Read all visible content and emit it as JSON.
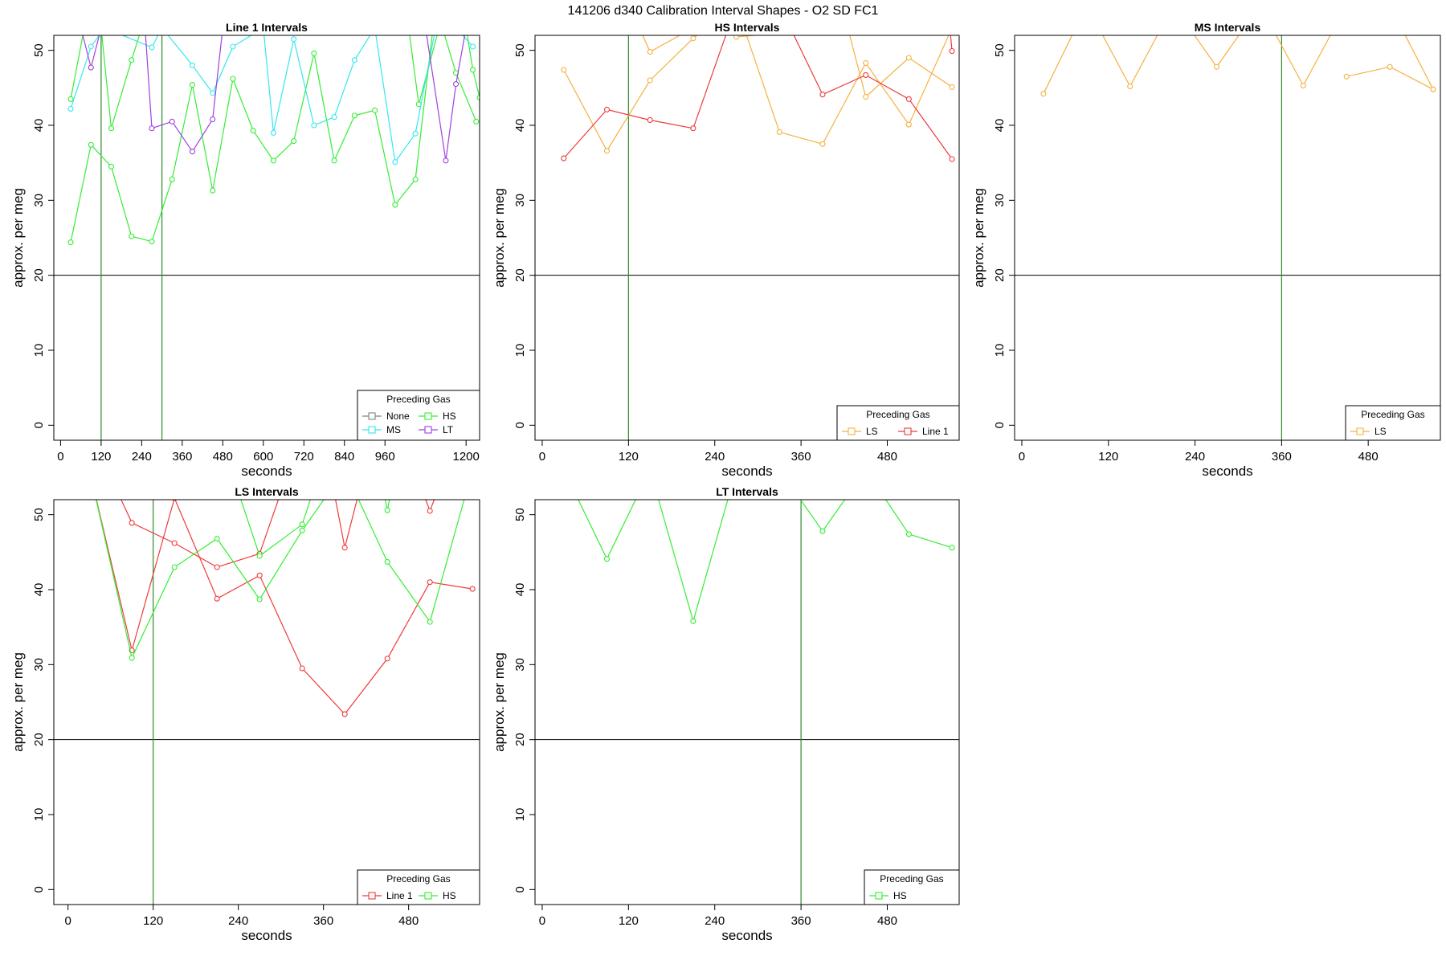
{
  "figure_title": "141206   d340   Calibration Interval Shapes - O2 SD FC1",
  "colors": {
    "None": "#808080",
    "HS": "#33ee33",
    "MS": "#33e8ee",
    "LT": "#a040e0",
    "LS": "#f5b041",
    "Line 1": "#ee3b3b",
    "axis": "#000000",
    "vline": "#2e8b2e"
  },
  "chart_data": [
    {
      "type": "line",
      "title": "Line 1 Intervals",
      "xlabel": "seconds",
      "ylabel": "approx. per meg",
      "xlim": [
        -20,
        1240
      ],
      "ylim": [
        -2,
        52
      ],
      "xticks": [
        0,
        120,
        240,
        360,
        480,
        600,
        720,
        840,
        960,
        1200
      ],
      "yticks": [
        0,
        10,
        20,
        30,
        40,
        50
      ],
      "hline": 20,
      "vlines": [
        120,
        300
      ],
      "legend": {
        "title": "Preceding Gas",
        "position": "bottom-right",
        "entries": [
          "None",
          "HS",
          "MS",
          "LT"
        ],
        "columns": 2
      },
      "series": [
        {
          "name": "HS",
          "x": [
            30,
            90,
            150,
            210,
            270,
            330,
            390,
            450,
            510,
            570,
            630,
            690,
            750,
            810,
            870,
            930,
            990,
            1050,
            1110,
            1170,
            1230
          ],
          "y": [
            24.4,
            37.4,
            34.5,
            25.2,
            24.5,
            32.8,
            45.4,
            31.3,
            46.2,
            39.3,
            35.3,
            37.9,
            49.6,
            35.3,
            41.3,
            42.0,
            29.4,
            32.8,
            56,
            47.0,
            40.5
          ]
        },
        {
          "name": "HS",
          "x": [
            30,
            70,
            120,
            150,
            210,
            240,
            1030,
            1060,
            1120,
            1200,
            1220,
            1240
          ],
          "y": [
            43.5,
            53,
            53,
            39.6,
            48.7,
            53,
            53,
            42.8,
            53,
            53,
            47.4,
            43.7
          ]
        },
        {
          "name": "MS",
          "x": [
            30,
            90,
            130,
            270,
            300,
            390,
            450,
            510,
            600,
            630,
            690,
            750,
            810,
            870,
            930,
            990,
            1050,
            1110,
            1170,
            1220
          ],
          "y": [
            42.2,
            50.5,
            53,
            50.4,
            53,
            48.0,
            44.3,
            50.5,
            53,
            39.0,
            51.5,
            40.0,
            41.1,
            48.7,
            53,
            35.1,
            38.9,
            53,
            53,
            50.5
          ]
        },
        {
          "name": "LT",
          "x": [
            60,
            90,
            120,
            250,
            270,
            330,
            390,
            450,
            480,
            1080,
            1140,
            1170,
            1200
          ],
          "y": [
            53,
            47.7,
            53,
            53,
            39.6,
            40.5,
            36.5,
            40.8,
            53,
            53,
            35.3,
            45.5,
            53
          ]
        }
      ]
    },
    {
      "type": "line",
      "title": "HS Intervals",
      "xlabel": "seconds",
      "ylabel": "approx. per meg",
      "xlim": [
        -10,
        580
      ],
      "ylim": [
        -2,
        52
      ],
      "xticks": [
        0,
        120,
        240,
        360,
        480
      ],
      "yticks": [
        0,
        10,
        20,
        30,
        40,
        50
      ],
      "hline": 20,
      "vlines": [
        120
      ],
      "legend": {
        "title": "Preceding Gas",
        "position": "bottom-right",
        "entries": [
          "LS",
          "Line 1"
        ],
        "columns": 2
      },
      "series": [
        {
          "name": "LS",
          "x": [
            30,
            90,
            150,
            210,
            270,
            330,
            390,
            450,
            510,
            570
          ],
          "y": [
            47.4,
            36.6,
            46.0,
            51.6,
            56,
            39.1,
            37.5,
            48.3,
            40.1,
            53
          ]
        },
        {
          "name": "LS",
          "x": [
            135,
            150,
            210,
            245,
            270,
            425,
            450,
            510,
            570
          ],
          "y": [
            53,
            49.8,
            53,
            53,
            51.8,
            53,
            43.8,
            49.0,
            45.1
          ]
        },
        {
          "name": "Line 1",
          "x": [
            30,
            90,
            150,
            210,
            270,
            330,
            390,
            450,
            510,
            570
          ],
          "y": [
            35.6,
            42.1,
            40.7,
            39.6,
            56,
            56,
            44.1,
            46.7,
            43.5,
            35.5
          ]
        },
        {
          "name": "Line 1",
          "x": [
            567,
            570
          ],
          "y": [
            53,
            49.9
          ]
        }
      ]
    },
    {
      "type": "line",
      "title": "MS Intervals",
      "xlabel": "seconds",
      "ylabel": "approx. per meg",
      "xlim": [
        -10,
        580
      ],
      "ylim": [
        -2,
        52
      ],
      "xticks": [
        0,
        120,
        240,
        360,
        480
      ],
      "yticks": [
        0,
        10,
        20,
        30,
        40,
        50
      ],
      "hline": 20,
      "vlines": [
        360
      ],
      "legend": {
        "title": "Preceding Gas",
        "position": "bottom-right",
        "entries": [
          "LS"
        ],
        "columns": 1
      },
      "series": [
        {
          "name": "LS",
          "x": [
            30,
            90,
            150,
            210,
            270,
            330,
            390,
            450,
            510,
            570
          ],
          "y": [
            44.2,
            56,
            45.2,
            56,
            47.8,
            56,
            45.3,
            56,
            56,
            44.8
          ]
        },
        {
          "name": "LS",
          "x": [
            450,
            510,
            570
          ],
          "y": [
            46.5,
            47.8,
            44.8
          ]
        }
      ]
    },
    {
      "type": "line",
      "title": "LS Intervals",
      "xlabel": "seconds",
      "ylabel": "approx. per meg",
      "xlim": [
        -20,
        580
      ],
      "ylim": [
        -2,
        52
      ],
      "xticks": [
        0,
        120,
        240,
        360,
        480
      ],
      "yticks": [
        0,
        10,
        20,
        30,
        40,
        50
      ],
      "hline": 20,
      "vlines": [
        120
      ],
      "legend": {
        "title": "Preceding Gas",
        "position": "bottom-right",
        "entries": [
          "Line 1",
          "HS"
        ],
        "columns": 2
      },
      "series": [
        {
          "name": "Line 1",
          "x": [
            30,
            90,
            150,
            210,
            270,
            330,
            390,
            450,
            510,
            570
          ],
          "y": [
            56,
            31.9,
            52.2,
            38.8,
            41.9,
            29.5,
            23.4,
            30.8,
            41.0,
            40.1
          ]
        },
        {
          "name": "Line 1",
          "x": [
            70,
            90,
            150,
            210,
            270,
            300,
            375,
            390,
            410,
            500,
            510,
            520
          ],
          "y": [
            53,
            48.9,
            46.2,
            43.0,
            44.8,
            53,
            53,
            45.6,
            53,
            53,
            50.5,
            53
          ]
        },
        {
          "name": "HS",
          "x": [
            30,
            90,
            150,
            210,
            270,
            330,
            390,
            450,
            510,
            570
          ],
          "y": [
            56,
            30.9,
            43.0,
            46.8,
            38.7,
            47.9,
            56,
            43.7,
            35.7,
            56
          ]
        },
        {
          "name": "HS",
          "x": [
            240,
            270,
            330,
            345,
            445,
            450,
            455
          ],
          "y": [
            53,
            44.5,
            48.7,
            53,
            53,
            50.6,
            53
          ]
        }
      ]
    },
    {
      "type": "line",
      "title": "LT Intervals",
      "xlabel": "seconds",
      "ylabel": "approx. per meg",
      "xlim": [
        -10,
        580
      ],
      "ylim": [
        -2,
        52
      ],
      "xticks": [
        0,
        120,
        240,
        360,
        480
      ],
      "yticks": [
        0,
        10,
        20,
        30,
        40,
        50
      ],
      "hline": 20,
      "vlines": [
        360
      ],
      "legend": {
        "title": "Preceding Gas",
        "position": "bottom-right",
        "entries": [
          "HS"
        ],
        "columns": 1
      },
      "series": [
        {
          "name": "HS",
          "x": [
            30,
            90,
            150,
            210,
            270,
            330,
            390,
            450,
            510,
            570
          ],
          "y": [
            56,
            44.1,
            56,
            35.8,
            56,
            56,
            47.8,
            56,
            47.4,
            45.6
          ]
        }
      ]
    }
  ]
}
